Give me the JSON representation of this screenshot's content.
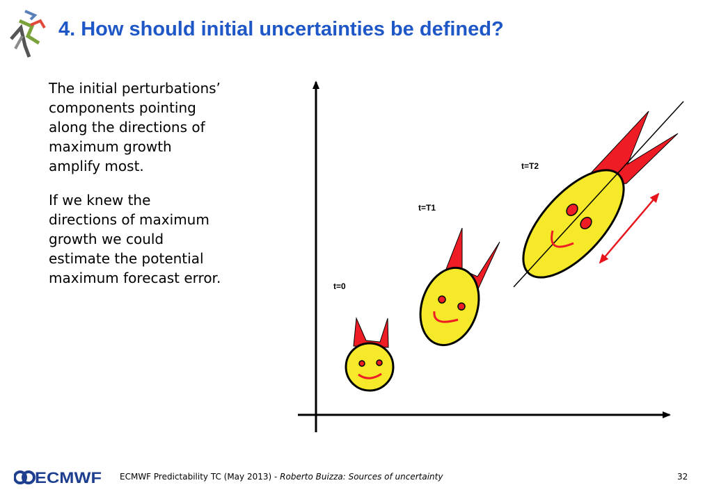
{
  "slide": {
    "title": "4. How should initial uncertainties be defined?",
    "paragraphs": [
      "The initial perturbations’\ncomponents pointing\nalong the directions of\nmaximum growth\namplify most.",
      "If we knew the\ndirections of maximum\ngrowth we could\nestimate the potential\nmaximum forecast error."
    ]
  },
  "diagram": {
    "labels": {
      "t0": "t=0",
      "t1": "t=T1",
      "t2": "t=T2"
    },
    "colors": {
      "face": "#f5e92a",
      "horns": "#ee1c24",
      "features": "#ee1c24",
      "outline": "#000000",
      "arrow": "#e8141c"
    }
  },
  "footer": {
    "logo_text": "ECMWF",
    "event": "ECMWF Predictability TC (May 2013) - ",
    "author": "Roberto Buizza: Sources of uncertainty",
    "page": "32"
  }
}
